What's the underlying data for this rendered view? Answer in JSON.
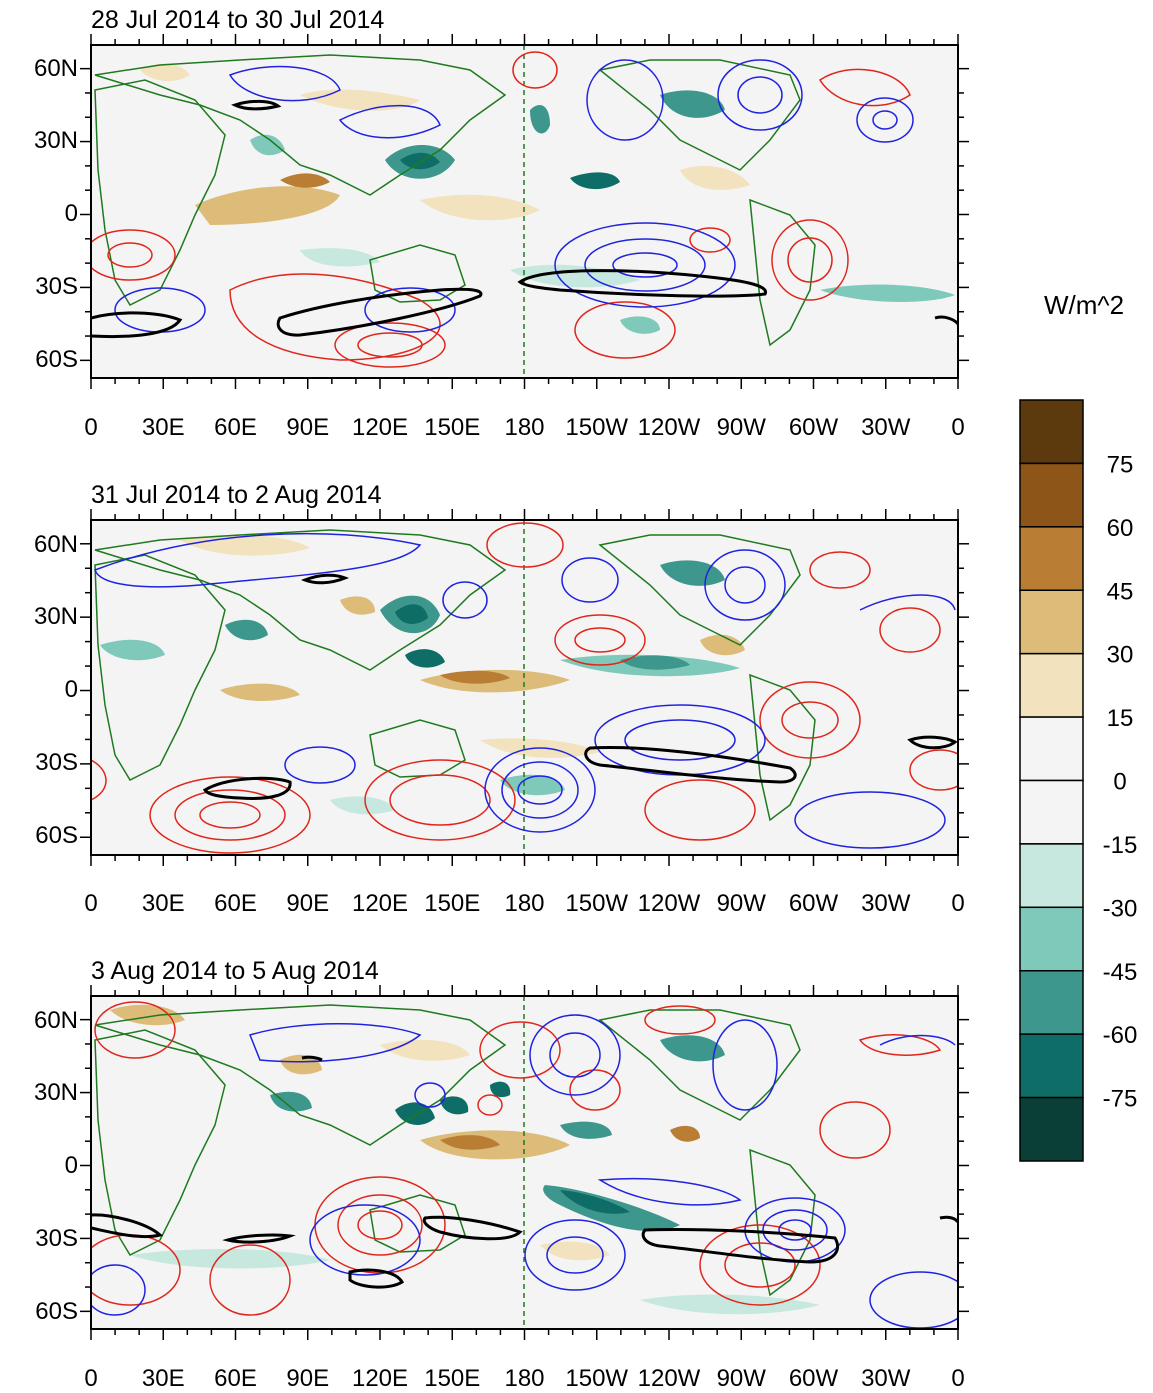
{
  "figure": {
    "x_tick_labels": [
      "0",
      "30E",
      "60E",
      "90E",
      "120E",
      "150E",
      "180",
      "150W",
      "120W",
      "90W",
      "60W",
      "30W",
      "0"
    ],
    "y_tick_labels": [
      "60N",
      "30N",
      "0",
      "30S",
      "60S"
    ],
    "panels": [
      {
        "title": "28 Jul 2014 to 30 Jul 2014"
      },
      {
        "title": "31 Jul 2014 to 2 Aug 2014"
      },
      {
        "title": "3 Aug 2014 to 5 Aug 2014"
      }
    ]
  },
  "colorbar": {
    "units": "W/m^2",
    "labels": [
      "75",
      "60",
      "45",
      "30",
      "15",
      "0",
      "-15",
      "-30",
      "-45",
      "-60",
      "-75"
    ],
    "colors": [
      "#5c3a0e",
      "#8e5518",
      "#b97e33",
      "#dcbc78",
      "#f2e2bd",
      "#f4f4f4",
      "#f4f4f4",
      "#c6e8df",
      "#7fc9bb",
      "#3d978c",
      "#0e6d66",
      "#0a3f38"
    ]
  },
  "colors": {
    "positive_contour": "#e0261b",
    "negative_contour": "#1f22e0",
    "zero_contour": "#000000",
    "coastline": "#1f7a1f",
    "dateline": "#1f7a1f"
  }
}
